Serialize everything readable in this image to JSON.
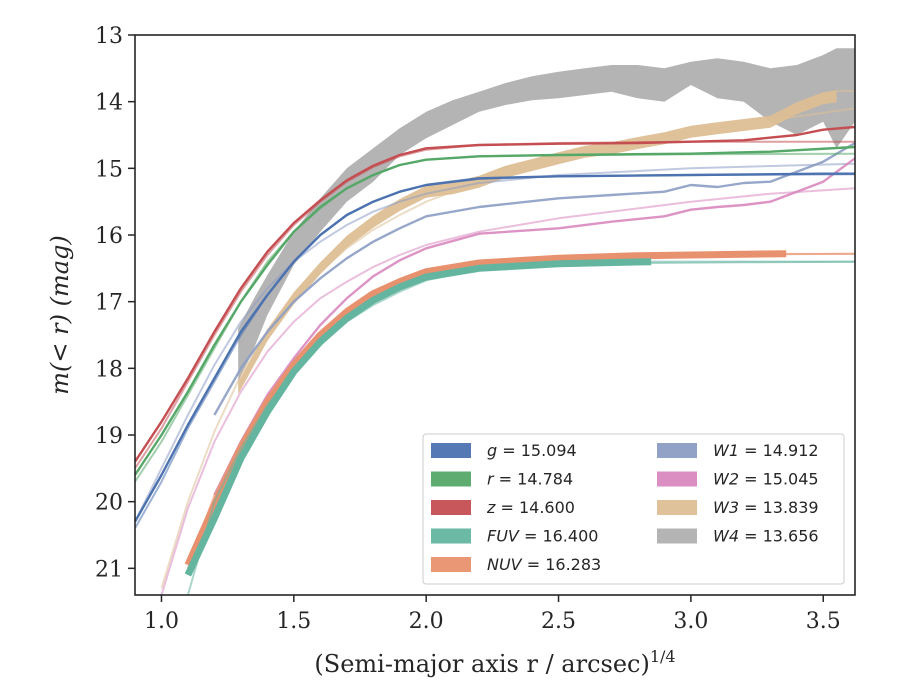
{
  "chart_data": {
    "type": "line",
    "xlabel": "(Semi-major axis r / arcsec)",
    "xlabel_sup": "1/4",
    "ylabel": "m(< r) (mag)",
    "xlim": [
      0.9,
      3.62
    ],
    "ylim": [
      21.4,
      13.0
    ],
    "y_inverted": true,
    "xticks": [
      1.0,
      1.5,
      2.0,
      2.5,
      3.0,
      3.5
    ],
    "xtick_labels": [
      "1.0",
      "1.5",
      "2.0",
      "2.5",
      "3.0",
      "3.5"
    ],
    "yticks": [
      13,
      14,
      15,
      16,
      17,
      18,
      19,
      20,
      21
    ],
    "ytick_labels": [
      "13",
      "14",
      "15",
      "16",
      "17",
      "18",
      "19",
      "20",
      "21"
    ],
    "grid": false,
    "legend_position": "lower-right",
    "legend_columns": 2,
    "series": [
      {
        "name": "g = 15.094",
        "color": "#4c72b0",
        "asymptote": 15.094,
        "model_x": [
          0.9,
          1.0,
          1.1,
          1.2,
          1.3,
          1.4,
          1.5,
          1.6,
          1.7,
          1.8,
          1.9,
          2.0,
          2.2,
          2.5,
          3.0,
          3.62
        ],
        "model_y": [
          20.4,
          19.7,
          18.9,
          18.2,
          17.5,
          16.9,
          16.4,
          16.0,
          15.7,
          15.5,
          15.35,
          15.25,
          15.16,
          15.12,
          15.1,
          15.09
        ],
        "data_x": [
          0.9,
          1.0,
          1.1,
          1.2,
          1.3,
          1.4,
          1.5,
          1.6,
          1.7,
          1.8,
          1.9,
          2.0,
          2.2,
          2.5,
          3.0,
          3.5,
          3.62
        ],
        "data_y": [
          20.3,
          19.6,
          18.85,
          18.15,
          17.45,
          16.9,
          16.4,
          16.0,
          15.7,
          15.5,
          15.35,
          15.25,
          15.15,
          15.12,
          15.1,
          15.08,
          15.08
        ]
      },
      {
        "name": "r = 14.784",
        "color": "#55a868",
        "asymptote": 14.784,
        "model_x": [
          0.9,
          1.0,
          1.1,
          1.2,
          1.3,
          1.4,
          1.5,
          1.6,
          1.7,
          1.8,
          1.9,
          2.0,
          2.2,
          2.5,
          3.0,
          3.62
        ],
        "model_y": [
          19.7,
          19.1,
          18.4,
          17.7,
          17.0,
          16.4,
          15.95,
          15.6,
          15.3,
          15.1,
          14.95,
          14.87,
          14.82,
          14.8,
          14.79,
          14.78
        ],
        "data_x": [
          0.9,
          1.0,
          1.1,
          1.2,
          1.3,
          1.4,
          1.5,
          1.6,
          1.7,
          1.8,
          1.9,
          2.0,
          2.2,
          2.5,
          3.0,
          3.3,
          3.62
        ],
        "data_y": [
          19.6,
          19.0,
          18.35,
          17.65,
          17.0,
          16.45,
          15.95,
          15.58,
          15.3,
          15.1,
          14.95,
          14.87,
          14.82,
          14.8,
          14.78,
          14.75,
          14.68
        ]
      },
      {
        "name": "z = 14.600",
        "color": "#c44e52",
        "asymptote": 14.6,
        "model_x": [
          0.9,
          1.0,
          1.1,
          1.2,
          1.3,
          1.4,
          1.5,
          1.6,
          1.7,
          1.8,
          1.9,
          2.0,
          2.2,
          2.5,
          3.0,
          3.62
        ],
        "model_y": [
          19.5,
          18.9,
          18.2,
          17.5,
          16.85,
          16.3,
          15.85,
          15.5,
          15.2,
          14.98,
          14.82,
          14.72,
          14.65,
          14.62,
          14.6,
          14.6
        ],
        "data_x": [
          0.9,
          1.0,
          1.1,
          1.2,
          1.3,
          1.4,
          1.5,
          1.6,
          1.7,
          1.8,
          1.9,
          2.0,
          2.2,
          2.5,
          2.8,
          3.0,
          3.2,
          3.4,
          3.5,
          3.62
        ],
        "data_y": [
          19.4,
          18.8,
          18.15,
          17.45,
          16.8,
          16.25,
          15.82,
          15.48,
          15.18,
          14.96,
          14.8,
          14.7,
          14.65,
          14.63,
          14.62,
          14.6,
          14.58,
          14.5,
          14.42,
          14.38
        ]
      },
      {
        "name": "FUV = 16.400",
        "color": "#64b5a0",
        "asymptote": 16.4,
        "model_x": [
          1.1,
          1.2,
          1.3,
          1.4,
          1.5,
          1.6,
          1.7,
          1.8,
          1.9,
          2.0,
          2.2,
          2.5,
          2.85,
          3.2,
          3.62
        ],
        "model_y": [
          21.4,
          20.0,
          19.2,
          18.55,
          18.05,
          17.65,
          17.3,
          17.05,
          16.85,
          16.68,
          16.52,
          16.45,
          16.42,
          16.41,
          16.4
        ],
        "data_x": [
          1.1,
          1.2,
          1.3,
          1.4,
          1.5,
          1.6,
          1.7,
          1.8,
          1.9,
          2.0,
          2.2,
          2.5,
          2.85
        ],
        "data_y": [
          21.1,
          20.25,
          19.35,
          18.65,
          18.05,
          17.6,
          17.25,
          16.98,
          16.78,
          16.63,
          16.5,
          16.43,
          16.4
        ]
      },
      {
        "name": "NUV = 16.283",
        "color": "#e8916e",
        "asymptote": 16.283,
        "model_x": [
          1.1,
          1.2,
          1.3,
          1.4,
          1.5,
          1.6,
          1.7,
          1.8,
          1.9,
          2.0,
          2.2,
          2.5,
          3.0,
          3.62
        ],
        "model_y": [
          21.0,
          19.9,
          19.1,
          18.45,
          17.95,
          17.5,
          17.15,
          16.9,
          16.72,
          16.56,
          16.42,
          16.35,
          16.3,
          16.28
        ],
        "data_x": [
          1.1,
          1.2,
          1.3,
          1.4,
          1.5,
          1.6,
          1.7,
          1.8,
          1.9,
          2.0,
          2.2,
          2.5,
          2.8,
          3.0,
          3.2,
          3.36
        ],
        "data_y": [
          20.95,
          20.05,
          19.2,
          18.5,
          17.95,
          17.5,
          17.15,
          16.88,
          16.7,
          16.55,
          16.42,
          16.35,
          16.31,
          16.3,
          16.29,
          16.28
        ]
      },
      {
        "name": "W1 = 14.912",
        "color": "#8c9dc4",
        "asymptote": 14.912,
        "model_x": [
          0.9,
          1.0,
          1.1,
          1.2,
          1.3,
          1.4,
          1.5,
          1.6,
          1.7,
          1.8,
          1.9,
          2.0,
          2.2,
          2.5,
          3.0,
          3.62
        ],
        "model_y": [
          20.3,
          19.5,
          18.7,
          17.95,
          17.3,
          16.8,
          16.4,
          16.1,
          15.85,
          15.65,
          15.5,
          15.38,
          15.22,
          15.1,
          15.0,
          14.93
        ],
        "data_x": [
          1.2,
          1.3,
          1.4,
          1.5,
          1.6,
          1.7,
          1.8,
          1.9,
          2.0,
          2.2,
          2.5,
          2.7,
          2.9,
          3.0,
          3.1,
          3.2,
          3.3,
          3.4,
          3.5,
          3.62
        ],
        "data_y": [
          18.7,
          18.0,
          17.45,
          17.0,
          16.65,
          16.35,
          16.1,
          15.9,
          15.72,
          15.58,
          15.45,
          15.4,
          15.35,
          15.25,
          15.28,
          15.22,
          15.2,
          15.05,
          14.9,
          14.62
        ]
      },
      {
        "name": "W2 = 15.045",
        "color": "#d988bf",
        "asymptote": 15.045,
        "model_x": [
          1.0,
          1.1,
          1.2,
          1.3,
          1.4,
          1.5,
          1.6,
          1.7,
          1.8,
          1.9,
          2.0,
          2.2,
          2.5,
          3.0,
          3.3,
          3.62
        ],
        "model_y": [
          21.4,
          20.1,
          19.1,
          18.35,
          17.75,
          17.3,
          16.95,
          16.7,
          16.48,
          16.3,
          16.15,
          15.95,
          15.75,
          15.5,
          15.38,
          15.3
        ],
        "data_x": [
          1.2,
          1.3,
          1.4,
          1.5,
          1.6,
          1.7,
          1.8,
          1.9,
          2.0,
          2.2,
          2.5,
          2.7,
          2.9,
          3.0,
          3.1,
          3.2,
          3.3,
          3.4,
          3.5,
          3.62
        ],
        "data_y": [
          19.9,
          19.1,
          18.4,
          17.85,
          17.35,
          16.95,
          16.62,
          16.38,
          16.2,
          15.98,
          15.9,
          15.8,
          15.72,
          15.62,
          15.58,
          15.55,
          15.5,
          15.35,
          15.2,
          14.85
        ]
      },
      {
        "name": "W3 = 13.839",
        "color": "#ddbf95",
        "asymptote": 13.839,
        "model_x": [
          1.0,
          1.1,
          1.2,
          1.3,
          1.4,
          1.5,
          1.6,
          1.7,
          1.8,
          1.9,
          2.0,
          2.2,
          2.5,
          3.0,
          3.62
        ],
        "model_y": [
          21.3,
          20.0,
          18.95,
          18.1,
          17.45,
          16.95,
          16.55,
          16.2,
          15.92,
          15.7,
          15.5,
          15.2,
          14.85,
          14.45,
          14.1
        ],
        "data_x": [
          1.29,
          1.4,
          1.5,
          1.6,
          1.7,
          1.8,
          1.9,
          2.0,
          2.1,
          2.2,
          2.3,
          2.4,
          2.5,
          2.6,
          2.7,
          2.8,
          2.9,
          3.0,
          3.1,
          3.2,
          3.3,
          3.4,
          3.5,
          3.55
        ],
        "data_y": [
          18.3,
          17.5,
          16.95,
          16.5,
          16.1,
          15.8,
          15.55,
          15.35,
          15.3,
          15.2,
          15.05,
          14.95,
          14.85,
          14.75,
          14.7,
          14.62,
          14.55,
          14.45,
          14.4,
          14.35,
          14.3,
          14.1,
          13.95,
          13.92
        ],
        "band_halfwidth": 0.09
      },
      {
        "name": "W4 = 13.656",
        "color": "#b0b0b0",
        "asymptote": 13.656,
        "data_x": [
          1.29,
          1.35,
          1.4,
          1.5,
          1.6,
          1.7,
          1.8,
          1.9,
          2.0,
          2.1,
          2.2,
          2.3,
          2.4,
          2.5,
          2.6,
          2.7,
          2.8,
          2.9,
          3.0,
          3.1,
          3.2,
          3.3,
          3.4,
          3.5,
          3.55,
          3.62
        ],
        "data_y": [
          17.8,
          17.3,
          16.9,
          16.2,
          15.7,
          15.25,
          14.95,
          14.6,
          14.35,
          14.15,
          14.0,
          13.9,
          13.8,
          13.75,
          13.7,
          13.6,
          13.65,
          13.7,
          13.55,
          13.6,
          13.75,
          13.8,
          13.9,
          13.9,
          13.8,
          13.6
        ],
        "band_upper": [
          17.4,
          16.95,
          16.6,
          15.95,
          15.45,
          15.0,
          14.7,
          14.4,
          14.15,
          13.98,
          13.85,
          13.72,
          13.62,
          13.55,
          13.5,
          13.45,
          13.45,
          13.5,
          13.4,
          13.35,
          13.4,
          13.5,
          13.45,
          13.3,
          13.2,
          13.2
        ],
        "band_lower": [
          18.2,
          17.7,
          17.2,
          16.45,
          15.95,
          15.5,
          15.2,
          14.8,
          14.55,
          14.35,
          14.15,
          14.05,
          13.98,
          13.95,
          13.9,
          13.85,
          13.95,
          14.0,
          13.75,
          13.95,
          14.0,
          14.3,
          14.5,
          14.3,
          14.7,
          14.3
        ]
      }
    ]
  }
}
